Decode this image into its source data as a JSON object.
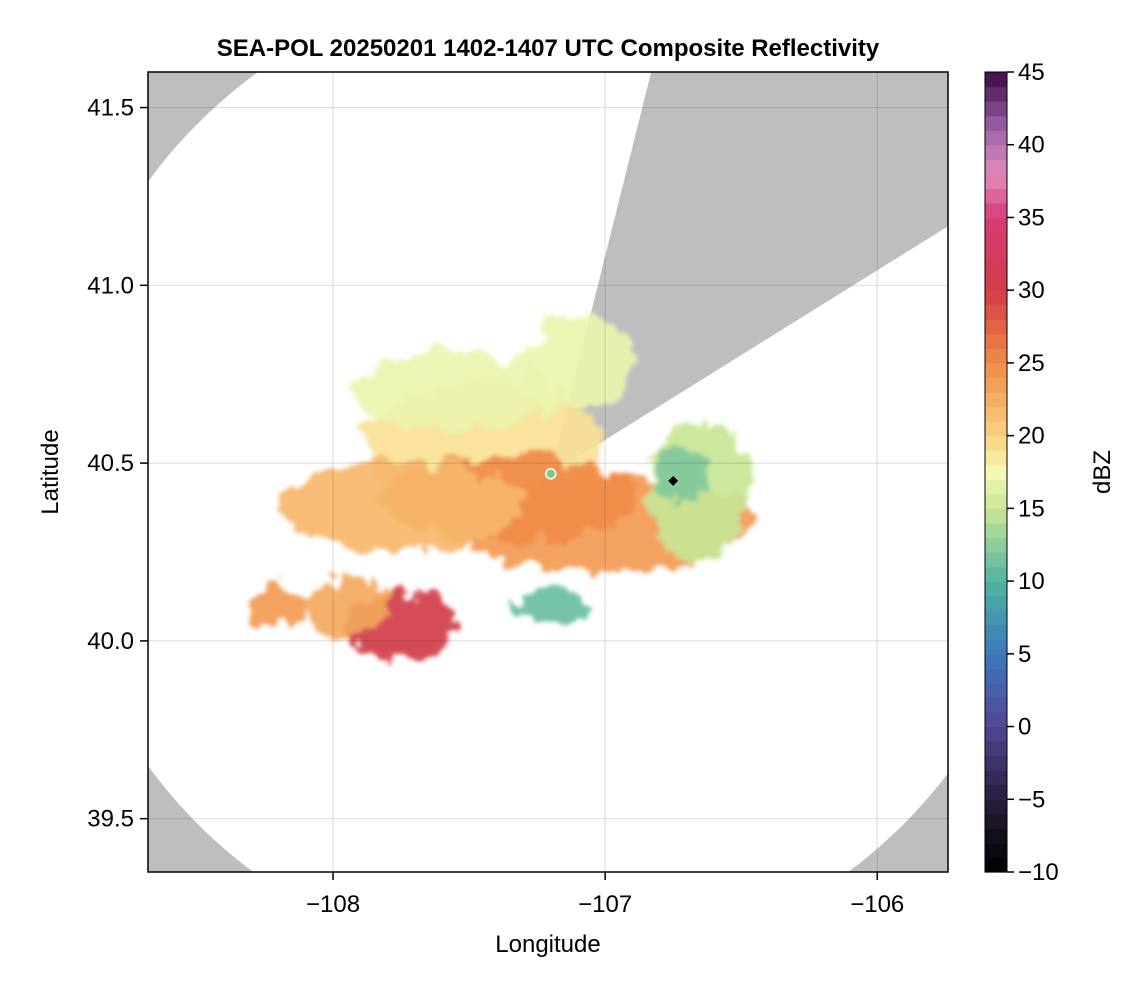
{
  "chart_data": {
    "type": "heatmap",
    "title": "SEA-POL 20250201 1402-1407 UTC Composite Reflectivity",
    "xlabel": "Longitude",
    "ylabel": "Latitude",
    "xlim": [
      -108.68,
      -105.74
    ],
    "ylim": [
      39.35,
      41.6
    ],
    "x_ticks": [
      -108,
      -107,
      -106
    ],
    "x_tick_labels": [
      "−108",
      "−107",
      "−106"
    ],
    "y_ticks": [
      39.5,
      40.0,
      40.5,
      41.0,
      41.5
    ],
    "y_tick_labels": [
      "39.5",
      "40.0",
      "40.5",
      "41.0",
      "41.5"
    ],
    "grid": true,
    "colorbar": {
      "label": "dBZ",
      "range": [
        -10,
        45
      ],
      "ticks": [
        -10,
        -5,
        0,
        5,
        10,
        15,
        20,
        25,
        30,
        35,
        40,
        45
      ],
      "tick_labels": [
        "−10",
        "−5",
        "0",
        "5",
        "10",
        "15",
        "20",
        "25",
        "30",
        "35",
        "40",
        "45"
      ],
      "colormap": "spectral (reversed)"
    },
    "radar_site": {
      "lon": -107.2,
      "lat": 40.47
    },
    "marker": {
      "lon": -106.75,
      "lat": 40.45
    },
    "coverage_radius_km": 155,
    "blocked_sectors_deg": [
      [
        14,
        58
      ]
    ],
    "echo_regions": [
      {
        "lon": -107.45,
        "lat": 40.55,
        "dbz": 19
      },
      {
        "lon": -107.0,
        "lat": 40.33,
        "dbz": 24
      },
      {
        "lon": -107.35,
        "lat": 40.4,
        "dbz": 25
      },
      {
        "lon": -107.75,
        "lat": 40.38,
        "dbz": 22
      },
      {
        "lon": -107.55,
        "lat": 40.7,
        "dbz": 17
      },
      {
        "lon": -107.1,
        "lat": 40.78,
        "dbz": 17
      },
      {
        "lon": -106.65,
        "lat": 40.42,
        "dbz": 15
      },
      {
        "lon": -106.72,
        "lat": 40.46,
        "dbz": 12
      },
      {
        "lon": -107.75,
        "lat": 40.04,
        "dbz": 30
      },
      {
        "lon": -107.95,
        "lat": 40.1,
        "dbz": 23
      },
      {
        "lon": -108.2,
        "lat": 40.1,
        "dbz": 24
      },
      {
        "lon": -107.2,
        "lat": 40.1,
        "dbz": 11
      }
    ],
    "background_color": "#bebebe",
    "coverage_color": "#ffffff"
  }
}
